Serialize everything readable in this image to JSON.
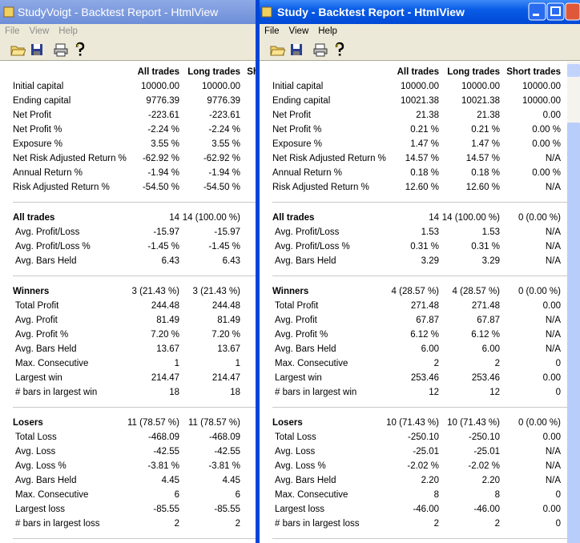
{
  "windows": [
    {
      "title": "StudyVoigt - Backtest Report - HtmlView",
      "menu": [
        "File",
        "View",
        "Help"
      ],
      "columns": [
        "All trades",
        "Long trades",
        "Short trades"
      ],
      "sections": [
        [
          [
            "Initial capital",
            "10000.00",
            "10000.00"
          ],
          [
            "Ending capital",
            "9776.39",
            "9776.39"
          ],
          [
            "Net Profit",
            "-223.61",
            "-223.61"
          ],
          [
            "Net Profit %",
            "-2.24 %",
            "-2.24 %"
          ],
          [
            "Exposure %",
            "3.55 %",
            "3.55 %"
          ],
          [
            "Net Risk Adjusted Return %",
            "-62.92 %",
            "-62.92 %"
          ],
          [
            "Annual Return %",
            "-1.94 %",
            "-1.94 %"
          ],
          [
            "Risk Adjusted Return %",
            "-54.50 %",
            "-54.50 %"
          ]
        ],
        [
          [
            "All trades",
            "14",
            "14 (100.00 %)"
          ],
          [
            "Avg. Profit/Loss",
            "-15.97",
            "-15.97"
          ],
          [
            "Avg. Profit/Loss %",
            "-1.45 %",
            "-1.45 %"
          ],
          [
            "Avg. Bars Held",
            "6.43",
            "6.43"
          ]
        ],
        [
          [
            "Winners",
            "3 (21.43 %)",
            "3 (21.43 %)"
          ],
          [
            "Total Profit",
            "244.48",
            "244.48"
          ],
          [
            "Avg. Profit",
            "81.49",
            "81.49"
          ],
          [
            "Avg. Profit %",
            "7.20 %",
            "7.20 %"
          ],
          [
            "Avg. Bars Held",
            "13.67",
            "13.67"
          ],
          [
            "Max. Consecutive",
            "1",
            "1"
          ],
          [
            "Largest win",
            "214.47",
            "214.47"
          ],
          [
            "# bars in largest win",
            "18",
            "18"
          ]
        ],
        [
          [
            "Losers",
            "11 (78.57 %)",
            "11 (78.57 %)"
          ],
          [
            "Total Loss",
            "-468.09",
            "-468.09"
          ],
          [
            "Avg. Loss",
            "-42.55",
            "-42.55"
          ],
          [
            "Avg. Loss %",
            "-3.81 %",
            "-3.81 %"
          ],
          [
            "Avg. Bars Held",
            "4.45",
            "4.45"
          ],
          [
            "Max. Consecutive",
            "6",
            "6"
          ],
          [
            "Largest loss",
            "-85.55",
            "-85.55"
          ],
          [
            "# bars in largest loss",
            "2",
            "2"
          ]
        ]
      ]
    },
    {
      "title": "Study - Backtest Report - HtmlView",
      "menu": [
        "File",
        "View",
        "Help"
      ],
      "columns": [
        "All trades",
        "Long trades",
        "Short trades"
      ],
      "sections": [
        [
          [
            "Initial capital",
            "10000.00",
            "10000.00",
            "10000.00"
          ],
          [
            "Ending capital",
            "10021.38",
            "10021.38",
            "10000.00"
          ],
          [
            "Net Profit",
            "21.38",
            "21.38",
            "0.00"
          ],
          [
            "Net Profit %",
            "0.21 %",
            "0.21 %",
            "0.00 %"
          ],
          [
            "Exposure %",
            "1.47 %",
            "1.47 %",
            "0.00 %"
          ],
          [
            "Net Risk Adjusted Return %",
            "14.57 %",
            "14.57 %",
            "N/A"
          ],
          [
            "Annual Return %",
            "0.18 %",
            "0.18 %",
            "0.00 %"
          ],
          [
            "Risk Adjusted Return %",
            "12.60 %",
            "12.60 %",
            "N/A"
          ]
        ],
        [
          [
            "All trades",
            "14",
            "14 (100.00 %)",
            "0 (0.00 %)"
          ],
          [
            "Avg. Profit/Loss",
            "1.53",
            "1.53",
            "N/A"
          ],
          [
            "Avg. Profit/Loss %",
            "0.31 %",
            "0.31 %",
            "N/A"
          ],
          [
            "Avg. Bars Held",
            "3.29",
            "3.29",
            "N/A"
          ]
        ],
        [
          [
            "Winners",
            "4 (28.57 %)",
            "4 (28.57 %)",
            "0 (0.00 %)"
          ],
          [
            "Total Profit",
            "271.48",
            "271.48",
            "0.00"
          ],
          [
            "Avg. Profit",
            "67.87",
            "67.87",
            "N/A"
          ],
          [
            "Avg. Profit %",
            "6.12 %",
            "6.12 %",
            "N/A"
          ],
          [
            "Avg. Bars Held",
            "6.00",
            "6.00",
            "N/A"
          ],
          [
            "Max. Consecutive",
            "2",
            "2",
            "0"
          ],
          [
            "Largest win",
            "253.46",
            "253.46",
            "0.00"
          ],
          [
            "# bars in largest win",
            "12",
            "12",
            "0"
          ]
        ],
        [
          [
            "Losers",
            "10 (71.43 %)",
            "10 (71.43 %)",
            "0 (0.00 %)"
          ],
          [
            "Total Loss",
            "-250.10",
            "-250.10",
            "0.00"
          ],
          [
            "Avg. Loss",
            "-25.01",
            "-25.01",
            "N/A"
          ],
          [
            "Avg. Loss %",
            "-2.02 %",
            "-2.02 %",
            "N/A"
          ],
          [
            "Avg. Bars Held",
            "2.20",
            "2.20",
            "N/A"
          ],
          [
            "Max. Consecutive",
            "8",
            "8",
            "0"
          ],
          [
            "Largest loss",
            "-46.00",
            "-46.00",
            "0.00"
          ],
          [
            "# bars in largest loss",
            "2",
            "2",
            "0"
          ]
        ]
      ]
    }
  ]
}
